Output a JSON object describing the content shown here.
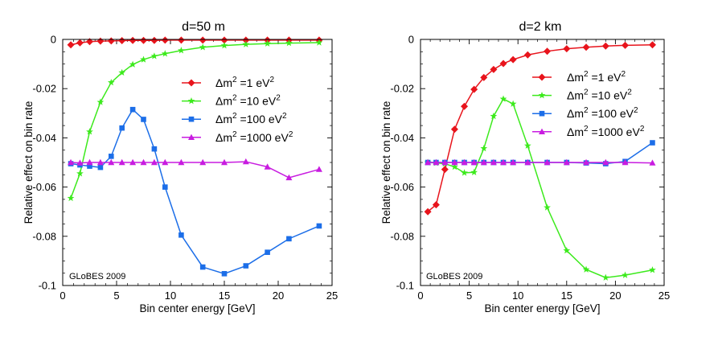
{
  "figure_title": "",
  "chart_data": [
    {
      "type": "line",
      "title": "d=50 m",
      "xlabel": "Bin center energy [GeV]",
      "ylabel": "Relative effect on bin rate",
      "xlim": [
        0,
        25
      ],
      "ylim": [
        -0.1,
        0
      ],
      "x_ticks": [
        "0",
        "5",
        "10",
        "15",
        "20",
        "25"
      ],
      "y_ticks": [
        "0",
        "-0.02",
        "-0.04",
        "-0.06",
        "-0.08",
        "-0.1"
      ],
      "annotation": "GLoBES 2009",
      "legend_position": "right",
      "series": [
        {
          "name": "Δm² =1 eV²",
          "label_base": "Δm",
          "label_exp": "2",
          "label_mid": " =1 eV",
          "label_exp2": "2",
          "color": "#e8141c",
          "marker": "diamond",
          "x": [
            0.75,
            1.6,
            2.5,
            3.5,
            4.5,
            5.5,
            6.5,
            7.5,
            8.5,
            9.5,
            11,
            13,
            15,
            17,
            19,
            21,
            23.8
          ],
          "y": [
            -0.0022,
            -0.0014,
            -0.0009,
            -0.0007,
            -0.0006,
            -0.0005,
            -0.0004,
            -0.0004,
            -0.0004,
            -0.0003,
            -0.0003,
            -0.0003,
            -0.0003,
            -0.0003,
            -0.0003,
            -0.0003,
            -0.0003
          ]
        },
        {
          "name": "Δm² =10 eV²",
          "label_base": "Δm",
          "label_exp": "2",
          "label_mid": " =10 eV",
          "label_exp2": "2",
          "color": "#3cea1c",
          "marker": "star",
          "x": [
            0.75,
            1.6,
            2.5,
            3.5,
            4.5,
            5.5,
            6.5,
            7.5,
            8.5,
            9.5,
            11,
            13,
            15,
            17,
            19,
            21,
            23.8
          ],
          "y": [
            -0.0645,
            -0.0545,
            -0.0375,
            -0.0255,
            -0.0175,
            -0.0135,
            -0.0102,
            -0.0082,
            -0.0068,
            -0.0058,
            -0.0045,
            -0.0032,
            -0.0025,
            -0.002,
            -0.0017,
            -0.0015,
            -0.0013
          ]
        },
        {
          "name": "Δm² =100 eV²",
          "label_base": "Δm",
          "label_exp": "2",
          "label_mid": " =100 eV",
          "label_exp2": "2",
          "color": "#1c6ee8",
          "marker": "square",
          "x": [
            0.75,
            1.6,
            2.5,
            3.5,
            4.5,
            5.5,
            6.5,
            7.5,
            8.5,
            9.5,
            11,
            13,
            15,
            17,
            19,
            21,
            23.8
          ],
          "y": [
            -0.0505,
            -0.051,
            -0.0515,
            -0.052,
            -0.0475,
            -0.036,
            -0.0285,
            -0.0325,
            -0.0445,
            -0.06,
            -0.0795,
            -0.0925,
            -0.0952,
            -0.092,
            -0.0865,
            -0.081,
            -0.0758
          ]
        },
        {
          "name": "Δm² =1000 eV²",
          "label_base": "Δm",
          "label_exp": "2",
          "label_mid": " =1000 eV",
          "label_exp2": "2",
          "color": "#c81ce0",
          "marker": "triangle",
          "x": [
            0.75,
            1.6,
            2.5,
            3.5,
            4.5,
            5.5,
            6.5,
            7.5,
            8.5,
            9.5,
            11,
            13,
            15,
            17,
            19,
            21,
            23.8
          ],
          "y": [
            -0.05,
            -0.0502,
            -0.05,
            -0.05,
            -0.05,
            -0.05,
            -0.05,
            -0.05,
            -0.05,
            -0.05,
            -0.05,
            -0.05,
            -0.05,
            -0.0497,
            -0.0518,
            -0.0562,
            -0.0528
          ]
        }
      ]
    },
    {
      "type": "line",
      "title": "d=2 km",
      "xlabel": "Bin center energy [GeV]",
      "ylabel": "Relative effect on bin rate",
      "xlim": [
        0,
        25
      ],
      "ylim": [
        -0.1,
        0
      ],
      "x_ticks": [
        "0",
        "5",
        "10",
        "15",
        "20",
        "25"
      ],
      "y_ticks": [
        "0",
        "-0.02",
        "-0.04",
        "-0.06",
        "-0.08",
        "-0.1"
      ],
      "annotation": "GLoBES 2009",
      "legend_position": "top-right",
      "series": [
        {
          "name": "Δm² =1 eV²",
          "label_base": "Δm",
          "label_exp": "2",
          "label_mid": " =1 eV",
          "label_exp2": "2",
          "color": "#e8141c",
          "marker": "diamond",
          "x": [
            0.75,
            1.6,
            2.5,
            3.5,
            4.5,
            5.5,
            6.5,
            7.5,
            8.5,
            9.5,
            11,
            13,
            15,
            17,
            19,
            21,
            23.8
          ],
          "y": [
            -0.07,
            -0.0672,
            -0.0528,
            -0.0365,
            -0.0272,
            -0.0203,
            -0.0155,
            -0.0122,
            -0.0098,
            -0.0082,
            -0.0063,
            -0.0048,
            -0.0038,
            -0.0032,
            -0.0027,
            -0.0024,
            -0.0022
          ]
        },
        {
          "name": "Δm² =10 eV²",
          "label_base": "Δm",
          "label_exp": "2",
          "label_mid": " =10 eV",
          "label_exp2": "2",
          "color": "#3cea1c",
          "marker": "star",
          "x": [
            0.75,
            1.6,
            2.5,
            3.5,
            4.5,
            5.5,
            6.5,
            7.5,
            8.5,
            9.5,
            11,
            13,
            15,
            17,
            19,
            21,
            23.8
          ],
          "y": [
            -0.05,
            -0.0502,
            -0.0505,
            -0.0518,
            -0.0542,
            -0.054,
            -0.0443,
            -0.0312,
            -0.0242,
            -0.0262,
            -0.0432,
            -0.0683,
            -0.0858,
            -0.0935,
            -0.0968,
            -0.0958,
            -0.0937
          ]
        },
        {
          "name": "Δm² =100 eV²",
          "label_base": "Δm",
          "label_exp": "2",
          "label_mid": " =100 eV",
          "label_exp2": "2",
          "color": "#1c6ee8",
          "marker": "square",
          "x": [
            0.75,
            1.6,
            2.5,
            3.5,
            4.5,
            5.5,
            6.5,
            7.5,
            8.5,
            9.5,
            11,
            13,
            15,
            17,
            19,
            21,
            23.8
          ],
          "y": [
            -0.05,
            -0.05,
            -0.05,
            -0.05,
            -0.05,
            -0.05,
            -0.05,
            -0.05,
            -0.05,
            -0.05,
            -0.05,
            -0.05,
            -0.05,
            -0.0502,
            -0.0505,
            -0.0496,
            -0.042
          ]
        },
        {
          "name": "Δm² =1000 eV²",
          "label_base": "Δm",
          "label_exp": "2",
          "label_mid": " =1000 eV",
          "label_exp2": "2",
          "color": "#c81ce0",
          "marker": "triangle",
          "x": [
            0.75,
            1.6,
            2.5,
            3.5,
            4.5,
            5.5,
            6.5,
            7.5,
            8.5,
            9.5,
            11,
            13,
            15,
            17,
            19,
            21,
            23.8
          ],
          "y": [
            -0.05,
            -0.05,
            -0.05,
            -0.05,
            -0.05,
            -0.05,
            -0.05,
            -0.05,
            -0.05,
            -0.05,
            -0.05,
            -0.05,
            -0.05,
            -0.05,
            -0.05,
            -0.05,
            -0.0502
          ]
        }
      ]
    }
  ]
}
